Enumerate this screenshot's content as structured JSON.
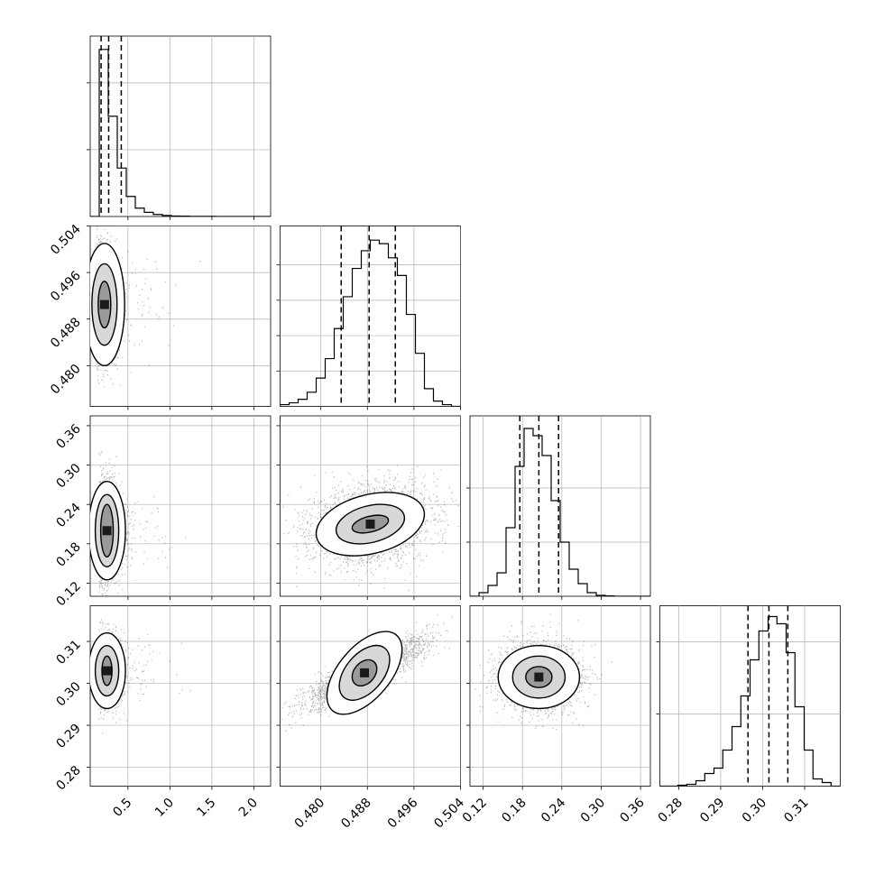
{
  "chart_data": {
    "type": "corner",
    "params": [
      {
        "name": "",
        "range": [
          0.05,
          2.2
        ],
        "ticks": [
          0.5,
          1.0,
          1.5,
          2.0
        ],
        "tick_labels": [
          "0.5",
          "1.0",
          "1.5",
          "2.0"
        ],
        "quantiles": [
          0.18,
          0.27,
          0.42
        ],
        "peak": 0.22
      },
      {
        "name": "",
        "range": [
          0.473,
          0.504
        ],
        "ticks": [
          0.48,
          0.488,
          0.496,
          0.504
        ],
        "tick_labels": [
          "0.480",
          "0.488",
          "0.496",
          "0.504"
        ],
        "quantiles": [
          0.4835,
          0.4883,
          0.4928
        ],
        "peak": 0.4885
      },
      {
        "name": "",
        "range": [
          0.1,
          0.375
        ],
        "ticks": [
          0.12,
          0.18,
          0.24,
          0.3,
          0.36
        ],
        "tick_labels": [
          "0.12",
          "0.18",
          "0.24",
          "0.30",
          "0.36"
        ],
        "quantiles": [
          0.176,
          0.205,
          0.235
        ],
        "peak": 0.2
      },
      {
        "name": "",
        "range": [
          0.2755,
          0.3185
        ],
        "ticks": [
          0.28,
          0.29,
          0.3,
          0.31
        ],
        "tick_labels": [
          "0.28",
          "0.29",
          "0.30",
          "0.31"
        ],
        "quantiles": [
          0.2965,
          0.3015,
          0.306
        ],
        "peak": 0.3025
      }
    ],
    "histograms": [
      {
        "param": 0,
        "edges": [
          0.05,
          0.1575,
          0.265,
          0.3725,
          0.48,
          0.5875,
          0.695,
          0.8025,
          0.91,
          1.0175,
          1.125,
          1.2325,
          1.34,
          1.4475,
          1.555,
          1.6625,
          1.77,
          1.8775,
          1.985,
          2.0925,
          2.2
        ],
        "counts": [
          0.0,
          1.0,
          0.6,
          0.29,
          0.12,
          0.05,
          0.025,
          0.012,
          0.006,
          0.003,
          0.002,
          0.001,
          0.001,
          0.0005,
          0.0003,
          0.0002,
          0.0001,
          0.0,
          0.0,
          0.0
        ],
        "ylim": [
          0,
          1.08
        ],
        "y_ticks": [
          0.4,
          0.8
        ]
      },
      {
        "param": 1,
        "edges": [
          0.473,
          0.47455,
          0.4761,
          0.47765,
          0.4792,
          0.48075,
          0.4823,
          0.48385,
          0.4854,
          0.48695,
          0.4885,
          0.49005,
          0.4916,
          0.49315,
          0.4947,
          0.49625,
          0.4978,
          0.49935,
          0.5009,
          0.50245,
          0.504
        ],
        "counts": [
          0.01,
          0.02,
          0.04,
          0.08,
          0.16,
          0.27,
          0.44,
          0.62,
          0.78,
          0.88,
          0.94,
          0.92,
          0.84,
          0.74,
          0.52,
          0.3,
          0.1,
          0.03,
          0.01,
          0.0
        ],
        "ylim": [
          0,
          1.02
        ],
        "y_ticks": [
          0.2,
          0.4,
          0.6,
          0.8
        ]
      },
      {
        "param": 2,
        "edges": [
          0.1,
          0.11375,
          0.1275,
          0.14125,
          0.155,
          0.16875,
          0.1825,
          0.19625,
          0.21,
          0.22375,
          0.2375,
          0.25125,
          0.265,
          0.27875,
          0.2925,
          0.30625,
          0.32,
          0.33375,
          0.3475,
          0.36125,
          0.375
        ],
        "counts": [
          0.0,
          0.02,
          0.06,
          0.13,
          0.38,
          0.72,
          0.93,
          0.89,
          0.78,
          0.53,
          0.3,
          0.15,
          0.07,
          0.02,
          0.005,
          0.002,
          0.0,
          0.0,
          0.0,
          0.0
        ],
        "ylim": [
          0,
          1.0
        ],
        "y_ticks": [
          0.3,
          0.6
        ]
      },
      {
        "param": 3,
        "edges": [
          0.2755,
          0.2776,
          0.2798,
          0.2819,
          0.2841,
          0.2862,
          0.2884,
          0.2905,
          0.2927,
          0.2948,
          0.297,
          0.2991,
          0.3013,
          0.3034,
          0.3056,
          0.3077,
          0.3099,
          0.312,
          0.3142,
          0.3163,
          0.3185
        ],
        "counts": [
          0.0,
          0.0,
          0.005,
          0.01,
          0.03,
          0.07,
          0.1,
          0.2,
          0.33,
          0.5,
          0.7,
          0.86,
          0.94,
          0.9,
          0.74,
          0.44,
          0.2,
          0.04,
          0.02,
          0.0
        ],
        "ylim": [
          0,
          1.0
        ],
        "y_ticks": [
          0.4,
          0.8
        ]
      }
    ],
    "pairs": [
      {
        "x": 0,
        "y": 1,
        "center": [
          0.22,
          0.4905
        ],
        "spread": [
          0.09,
          0.0045
        ],
        "rho": 0,
        "levels": [
          [
            0.075,
            0.004
          ],
          [
            0.15,
            0.007
          ],
          [
            0.24,
            0.0105
          ]
        ]
      },
      {
        "x": 0,
        "y": 2,
        "center": [
          0.25,
          0.2
        ],
        "spread": [
          0.1,
          0.035
        ],
        "rho": 0,
        "levels": [
          [
            0.075,
            0.04
          ],
          [
            0.14,
            0.055
          ],
          [
            0.22,
            0.075
          ]
        ]
      },
      {
        "x": 1,
        "y": 2,
        "center": [
          0.4885,
          0.21
        ],
        "spread": [
          0.005,
          0.03
        ],
        "rho": 0.18,
        "levels": [
          [
            0.0032,
            0.012
          ],
          [
            0.006,
            0.028
          ],
          [
            0.0095,
            0.045
          ]
        ]
      },
      {
        "x": 0,
        "y": 3,
        "center": [
          0.25,
          0.303
        ],
        "spread": [
          0.1,
          0.004
        ],
        "rho": 0,
        "levels": [
          [
            0.06,
            0.0035
          ],
          [
            0.14,
            0.006
          ],
          [
            0.22,
            0.009
          ]
        ]
      },
      {
        "x": 1,
        "y": 3,
        "center": [
          0.4875,
          0.3025
        ],
        "spread": [
          0.005,
          0.004
        ],
        "rho": 0.85,
        "levels": [
          [
            0.0025,
            0.0025
          ],
          [
            0.0055,
            0.0045
          ],
          [
            0.0085,
            0.0062
          ]
        ]
      },
      {
        "x": 2,
        "y": 3,
        "center": [
          0.205,
          0.3015
        ],
        "spread": [
          0.03,
          0.004
        ],
        "rho": 0,
        "levels": [
          [
            0.02,
            0.0025
          ],
          [
            0.04,
            0.005
          ],
          [
            0.062,
            0.0075
          ]
        ]
      }
    ],
    "grid": true
  }
}
